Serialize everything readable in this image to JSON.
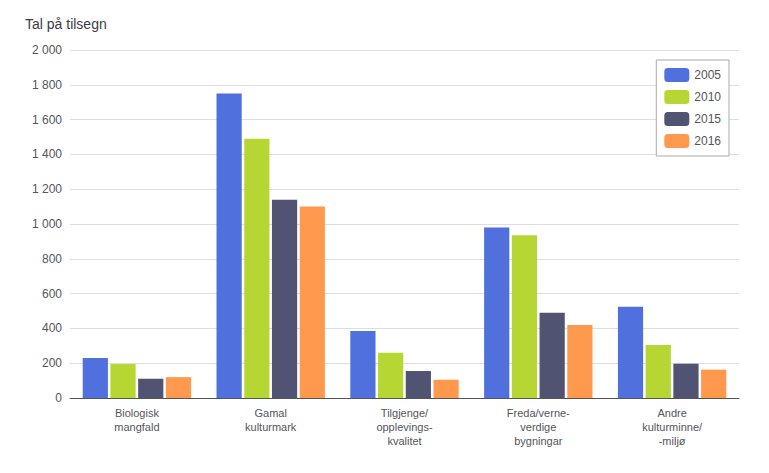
{
  "chart_data": {
    "type": "bar",
    "title": "Tal på tilsegn",
    "categories": [
      "Biologisk\nmangfald",
      "Gamal\nkulturmark",
      "Tilgjenge/\nopplevings-\nkvalitet",
      "Freda/verne-\nverdige\nbygningar",
      "Andre\nkulturminne/\n-miljø"
    ],
    "series": [
      {
        "name": "2005",
        "values": [
          230,
          1750,
          385,
          980,
          525
        ]
      },
      {
        "name": "2010",
        "values": [
          195,
          1490,
          260,
          935,
          305
        ]
      },
      {
        "name": "2015",
        "values": [
          110,
          1140,
          155,
          490,
          197
        ]
      },
      {
        "name": "2016",
        "values": [
          120,
          1100,
          105,
          420,
          163
        ]
      }
    ],
    "ylim": [
      0,
      2000
    ],
    "yticks": [
      0,
      200,
      400,
      600,
      800,
      {
        "value": 1000,
        "label": "1 000"
      },
      {
        "value": 1200,
        "label": "1 200"
      },
      {
        "value": 1400,
        "label": "1 400"
      },
      {
        "value": 1600,
        "label": "1 600"
      },
      {
        "value": 1800,
        "label": "1 800"
      },
      {
        "value": 2000,
        "label": "2 000"
      }
    ],
    "grid": true,
    "legend": "upper right"
  }
}
